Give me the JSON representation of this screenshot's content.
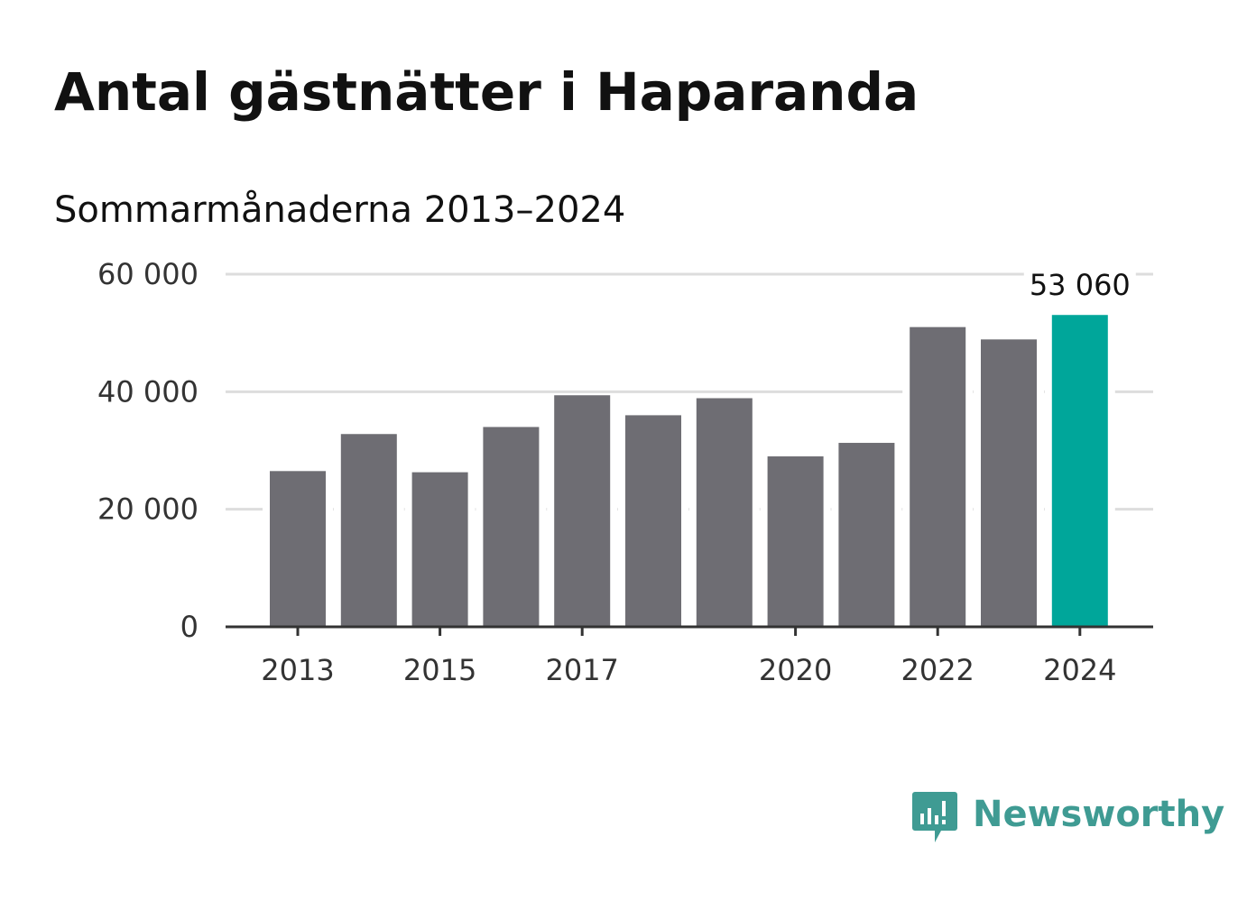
{
  "colors": {
    "bar_default": "#6e6d73",
    "bar_highlight": "#00a69a",
    "gridline": "#dddddd",
    "axis": "#333333",
    "brand": "#3f9b93"
  },
  "chart_data": {
    "type": "bar",
    "title": "Antal gästnätter i Haparanda",
    "subtitle": "Sommarmånaderna 2013–2024",
    "categories": [
      2013,
      2014,
      2015,
      2016,
      2017,
      2018,
      2019,
      2020,
      2021,
      2022,
      2023,
      2024
    ],
    "values": [
      26500,
      32800,
      26300,
      34000,
      39400,
      36000,
      38900,
      29000,
      31300,
      51000,
      48900,
      53060
    ],
    "highlight_index": 11,
    "x_tick_labels": [
      {
        "category": 2013,
        "label": "2013"
      },
      {
        "category": 2015,
        "label": "2015"
      },
      {
        "category": 2017,
        "label": "2017"
      },
      {
        "category": 2020,
        "label": "2020"
      },
      {
        "category": 2022,
        "label": "2022"
      },
      {
        "category": 2024,
        "label": "2024"
      }
    ],
    "y_ticks": [
      {
        "value": 0,
        "label": "0"
      },
      {
        "value": 20000,
        "label": "20 000"
      },
      {
        "value": 40000,
        "label": "40 000"
      },
      {
        "value": 60000,
        "label": "60 000"
      }
    ],
    "ylim": [
      0,
      60000
    ],
    "grid": true,
    "annotations": [
      {
        "category": 2024,
        "label": "53 060"
      }
    ],
    "xlabel": "",
    "ylabel": ""
  },
  "brand": {
    "name": "Newsworthy",
    "icon": "newsworthy-logo-icon"
  }
}
